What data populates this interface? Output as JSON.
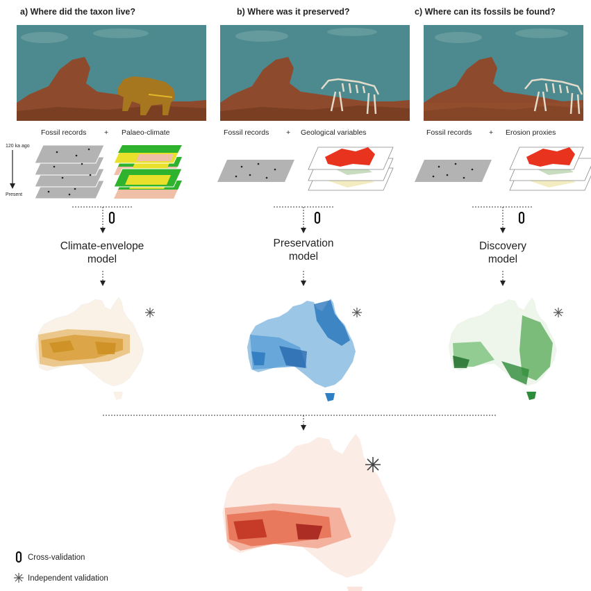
{
  "panels": [
    {
      "heading": "a) Where did the taxon live?",
      "inputs": {
        "left": "Fossil records",
        "plus": "+",
        "right": "Palaeo-climate"
      },
      "timeline": {
        "top": "120 ka ago",
        "bottom": "Present"
      },
      "model": {
        "line1": "Climate-envelope",
        "line2": "model"
      },
      "map_color": "#c98a1a"
    },
    {
      "heading": "b) Where was it preserved?",
      "inputs": {
        "left": "Fossil records",
        "plus": "+",
        "right": "Geological variables"
      },
      "model": {
        "line1": "Preservation",
        "line2": "model"
      },
      "map_color": "#1f6fb8"
    },
    {
      "heading": "c) Where can its fossils be found?",
      "inputs": {
        "left": "Fossil records",
        "plus": "+",
        "right": "Erosion proxies"
      },
      "model": {
        "line1": "Discovery",
        "line2": "model"
      },
      "map_color": "#2e8b3a"
    }
  ],
  "final_map_color": "#c0301e",
  "legend": {
    "cross_validation": "Cross-validation",
    "independent_validation": "Independent validation"
  },
  "colors": {
    "sky": "#4d8a8f",
    "rock": "#8e4a2c",
    "ground": "#7a3e22",
    "animal": "#a7771f",
    "skeleton": "#e4dccb",
    "layer_grey": "#b3b3b3",
    "clim_green": "#2fb32f",
    "clim_yellow": "#e8e02a",
    "clim_pink": "#f0bfa8",
    "geo_red": "#e8331f"
  }
}
